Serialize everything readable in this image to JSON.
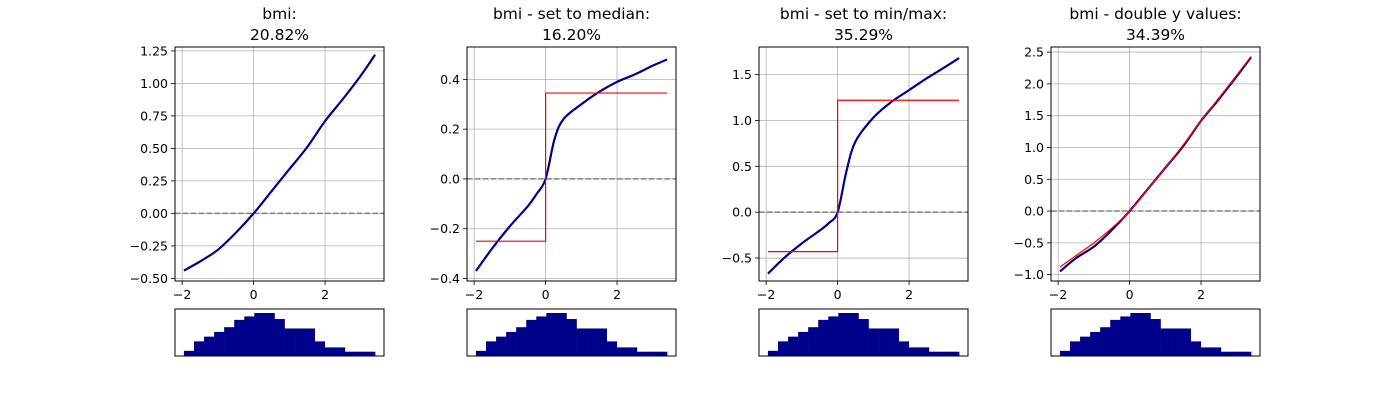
{
  "chart_data": [
    {
      "type": "line",
      "title_line1": "bmi:",
      "title_line2": "20.82%",
      "xlim": [
        -2.2,
        3.65
      ],
      "ylim": [
        -0.52,
        1.28
      ],
      "xticks": [
        -2,
        0,
        2
      ],
      "yticks": [
        -0.5,
        -0.25,
        0.0,
        0.25,
        0.5,
        0.75,
        1.0,
        1.25
      ],
      "ytick_labels": [
        "−0.50",
        "−0.25",
        "0.00",
        "0.25",
        "0.50",
        "0.75",
        "1.00",
        "1.25"
      ],
      "reference_line_y": 0,
      "series": [
        {
          "style": "smooth",
          "color": "#00008b",
          "x": [
            -1.95,
            -1.5,
            -1.0,
            -0.5,
            0.0,
            0.5,
            1.0,
            1.5,
            2.0,
            2.5,
            3.0,
            3.4
          ],
          "y": [
            -0.44,
            -0.37,
            -0.28,
            -0.15,
            0.0,
            0.17,
            0.34,
            0.51,
            0.71,
            0.88,
            1.06,
            1.22
          ]
        }
      ],
      "histogram": {
        "color": "#00008b",
        "x_min": -1.95,
        "x_max": 3.4,
        "heights": [
          0.12,
          0.34,
          0.45,
          0.56,
          0.67,
          0.84,
          0.92,
          1.0,
          1.0,
          0.86,
          0.64,
          0.64,
          0.64,
          0.34,
          0.2,
          0.2,
          0.1,
          0.1,
          0.1
        ]
      }
    },
    {
      "type": "line",
      "title_line1": "bmi - set to median:",
      "title_line2": "16.20%",
      "xlim": [
        -2.2,
        3.65
      ],
      "ylim": [
        -0.41,
        0.53
      ],
      "xticks": [
        -2,
        0,
        2
      ],
      "yticks": [
        -0.4,
        -0.2,
        0.0,
        0.2,
        0.4
      ],
      "ytick_labels": [
        "−0.4",
        "−0.2",
        "0.0",
        "0.2",
        "0.4"
      ],
      "reference_line_y": 0,
      "series": [
        {
          "style": "smooth",
          "color": "#00008b",
          "x": [
            -1.95,
            -1.5,
            -1.0,
            -0.5,
            -0.25,
            0.0,
            0.25,
            0.5,
            1.0,
            1.5,
            2.0,
            2.5,
            3.0,
            3.4
          ],
          "y": [
            -0.37,
            -0.28,
            -0.19,
            -0.11,
            -0.06,
            0.0,
            0.16,
            0.24,
            0.3,
            0.35,
            0.39,
            0.42,
            0.455,
            0.48
          ]
        },
        {
          "style": "step",
          "color": "#ff0000",
          "x": [
            -1.95,
            0.0,
            0.0,
            3.4
          ],
          "y": [
            -0.25,
            -0.25,
            0.345,
            0.345
          ]
        }
      ],
      "histogram": {
        "color": "#00008b",
        "x_min": -1.95,
        "x_max": 3.4,
        "heights": [
          0.12,
          0.34,
          0.45,
          0.56,
          0.67,
          0.84,
          0.92,
          1.0,
          1.0,
          0.86,
          0.64,
          0.64,
          0.64,
          0.34,
          0.2,
          0.2,
          0.1,
          0.1,
          0.1
        ]
      }
    },
    {
      "type": "line",
      "title_line1": "bmi - set to min/max:",
      "title_line2": "35.29%",
      "xlim": [
        -2.2,
        3.65
      ],
      "ylim": [
        -0.75,
        1.8
      ],
      "xticks": [
        -2,
        0,
        2
      ],
      "yticks": [
        -0.5,
        0.0,
        0.5,
        1.0,
        1.5
      ],
      "ytick_labels": [
        "−0.5",
        "0.0",
        "0.5",
        "1.0",
        "1.5"
      ],
      "reference_line_y": 0,
      "series": [
        {
          "style": "smooth",
          "color": "#00008b",
          "x": [
            -1.95,
            -1.5,
            -1.0,
            -0.5,
            -0.25,
            0.0,
            0.25,
            0.5,
            1.0,
            1.5,
            2.0,
            2.5,
            3.0,
            3.4
          ],
          "y": [
            -0.67,
            -0.5,
            -0.34,
            -0.2,
            -0.12,
            0.0,
            0.45,
            0.77,
            1.03,
            1.2,
            1.33,
            1.46,
            1.58,
            1.68
          ]
        },
        {
          "style": "step",
          "color": "#ff0000",
          "x": [
            -1.95,
            0.0,
            0.0,
            3.4
          ],
          "y": [
            -0.43,
            -0.43,
            1.22,
            1.22
          ]
        }
      ],
      "histogram": {
        "color": "#00008b",
        "x_min": -1.95,
        "x_max": 3.4,
        "heights": [
          0.12,
          0.34,
          0.45,
          0.56,
          0.67,
          0.84,
          0.92,
          1.0,
          1.0,
          0.86,
          0.64,
          0.64,
          0.64,
          0.34,
          0.2,
          0.2,
          0.1,
          0.1,
          0.1
        ]
      }
    },
    {
      "type": "line",
      "title_line1": "bmi - double y values:",
      "title_line2": "34.39%",
      "xlim": [
        -2.2,
        3.65
      ],
      "ylim": [
        -1.1,
        2.58
      ],
      "xticks": [
        -2,
        0,
        2
      ],
      "yticks": [
        -1.0,
        -0.5,
        0.0,
        0.5,
        1.0,
        1.5,
        2.0,
        2.5
      ],
      "ytick_labels": [
        "−1.0",
        "−0.5",
        "0.0",
        "0.5",
        "1.0",
        "1.5",
        "2.0",
        "2.5"
      ],
      "reference_line_y": 0,
      "series": [
        {
          "style": "smooth",
          "color": "#00008b",
          "x": [
            -1.95,
            -1.5,
            -1.0,
            -0.5,
            0.0,
            0.5,
            1.0,
            1.5,
            2.0,
            2.5,
            3.0,
            3.4
          ],
          "y": [
            -0.95,
            -0.74,
            -0.56,
            -0.3,
            0.0,
            0.34,
            0.68,
            1.02,
            1.42,
            1.76,
            2.12,
            2.42
          ]
        },
        {
          "style": "smooth",
          "color": "#ff0000",
          "x": [
            -1.95,
            -1.5,
            -1.0,
            -0.5,
            0.0,
            0.5,
            1.0,
            1.5,
            2.0,
            2.5,
            3.0,
            3.4
          ],
          "y": [
            -0.88,
            -0.7,
            -0.5,
            -0.27,
            0.0,
            0.34,
            0.68,
            1.04,
            1.42,
            1.78,
            2.14,
            2.43
          ]
        }
      ],
      "histogram": {
        "color": "#00008b",
        "x_min": -1.95,
        "x_max": 3.4,
        "heights": [
          0.12,
          0.34,
          0.45,
          0.56,
          0.67,
          0.84,
          0.92,
          1.0,
          1.0,
          0.86,
          0.64,
          0.64,
          0.64,
          0.34,
          0.2,
          0.2,
          0.1,
          0.1,
          0.1
        ]
      }
    }
  ]
}
